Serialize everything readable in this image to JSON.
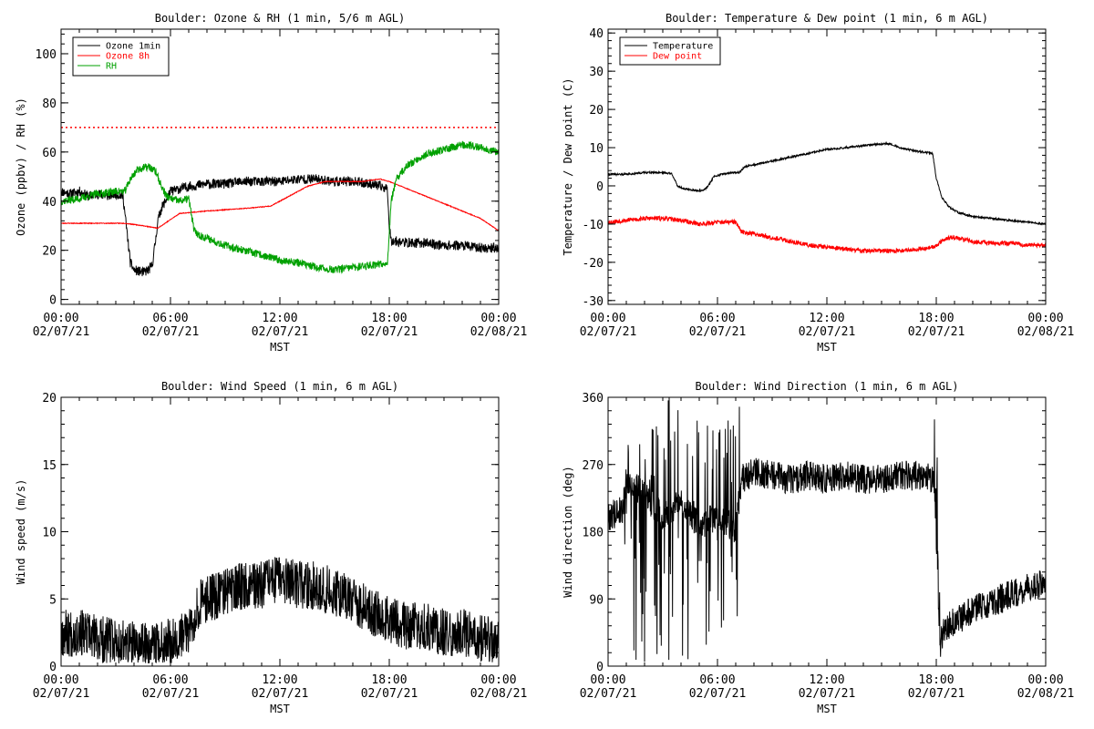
{
  "chart_data": [
    {
      "id": "ozone_rh",
      "type": "line",
      "title": "Boulder: Ozone & RH (1 min, 5/6 m AGL)",
      "xlabel": "MST",
      "ylabel": "Ozone (ppbv) / RH (%)",
      "xlim": [
        0,
        24
      ],
      "ylim": [
        -2,
        110
      ],
      "yticks": [
        0,
        20,
        40,
        60,
        80,
        100
      ],
      "xticks": [
        {
          "t": 0,
          "l1": "00:00",
          "l2": "02/07/21"
        },
        {
          "t": 6,
          "l1": "06:00",
          "l2": "02/07/21"
        },
        {
          "t": 12,
          "l1": "12:00",
          "l2": "02/07/21"
        },
        {
          "t": 18,
          "l1": "18:00",
          "l2": "02/07/21"
        },
        {
          "t": 24,
          "l1": "00:00",
          "l2": "02/08/21"
        }
      ],
      "reference_line": {
        "y": 70,
        "color": "#ff0000",
        "style": "dotted"
      },
      "legend": "top-left",
      "series": [
        {
          "name": "Ozone 1min",
          "color": "#000000",
          "noise": 2.0,
          "seed": 11,
          "x": [
            0,
            0.5,
            1,
            1.5,
            2,
            2.5,
            3,
            3.4,
            3.5,
            3.8,
            4,
            4.5,
            4.8,
            5.0,
            5.2,
            5.3,
            5.5,
            6,
            6.5,
            7,
            8,
            9,
            10,
            11,
            12,
            13,
            14,
            15,
            16,
            17,
            17.5,
            17.9,
            18,
            18.1,
            19,
            20,
            21,
            22,
            23,
            24
          ],
          "y": [
            44,
            43,
            44,
            42,
            43,
            42,
            43,
            42,
            35,
            15,
            12,
            11,
            12,
            14,
            25,
            32,
            37,
            44,
            45,
            46,
            47,
            47,
            48,
            48,
            48,
            49,
            49,
            48,
            48,
            47,
            46,
            45,
            30,
            24,
            23,
            23,
            22,
            22,
            21,
            21
          ]
        },
        {
          "name": "Ozone 8h",
          "color": "#ff0000",
          "noise": 0.15,
          "seed": 23,
          "x": [
            0,
            2.5,
            3.5,
            4.5,
            5.3,
            6.5,
            8,
            10,
            11.5,
            12.5,
            13.5,
            14.5,
            15.5,
            16.5,
            17.5,
            18,
            19,
            20,
            21,
            22,
            23,
            24
          ],
          "y": [
            31,
            31,
            31,
            30,
            29,
            35,
            36,
            37,
            38,
            42,
            46,
            48,
            48,
            48,
            49,
            48,
            45,
            42,
            39,
            36,
            33,
            28
          ]
        },
        {
          "name": "RH",
          "color": "#00a000",
          "noise": 1.6,
          "seed": 37,
          "x": [
            0,
            1,
            2,
            3,
            3.5,
            3.8,
            4.2,
            4.8,
            5.2,
            5.5,
            5.8,
            6.0,
            6.5,
            7,
            7.3,
            7.6,
            8,
            9,
            10,
            11,
            12,
            13,
            14,
            15,
            16,
            17,
            17.9,
            18.1,
            18.4,
            18.8,
            19.3,
            20,
            21,
            22,
            23,
            24
          ],
          "y": [
            40,
            41,
            43,
            44,
            44,
            49,
            53,
            54,
            52,
            46,
            42,
            41,
            40,
            41,
            28,
            26,
            25,
            22,
            20,
            18,
            16,
            15,
            13,
            12,
            13,
            14,
            15,
            40,
            49,
            53,
            56,
            59,
            61,
            63,
            62,
            60
          ]
        }
      ]
    },
    {
      "id": "temp_dew",
      "type": "line",
      "title": "Boulder: Temperature & Dew point (1 min, 6 m AGL)",
      "xlabel": "MST",
      "ylabel": "Temperature / Dew point (C)",
      "xlim": [
        0,
        24
      ],
      "ylim": [
        -31,
        41
      ],
      "yticks": [
        -30,
        -20,
        -10,
        0,
        10,
        20,
        30,
        40
      ],
      "xticks": [
        {
          "t": 0,
          "l1": "00:00",
          "l2": "02/07/21"
        },
        {
          "t": 6,
          "l1": "06:00",
          "l2": "02/07/21"
        },
        {
          "t": 12,
          "l1": "12:00",
          "l2": "02/07/21"
        },
        {
          "t": 18,
          "l1": "18:00",
          "l2": "02/07/21"
        },
        {
          "t": 24,
          "l1": "00:00",
          "l2": "02/08/21"
        }
      ],
      "legend": "top-left",
      "series": [
        {
          "name": "Temperature",
          "color": "#000000",
          "noise": 0.25,
          "seed": 41,
          "x": [
            0,
            1,
            2,
            3,
            3.5,
            3.8,
            4.2,
            4.8,
            5.2,
            5.5,
            5.8,
            6.2,
            6.8,
            7.2,
            7.5,
            8,
            9,
            10,
            11,
            12,
            13,
            14,
            15,
            15.5,
            16,
            17,
            17.8,
            18,
            18.3,
            18.7,
            19.2,
            20,
            21,
            22,
            23,
            24
          ],
          "y": [
            3,
            3,
            3.5,
            3.5,
            3.2,
            0,
            -0.8,
            -1.2,
            -1.3,
            0,
            2.5,
            3,
            3.5,
            3.5,
            5,
            5.5,
            6.5,
            7.5,
            8.5,
            9.5,
            10,
            10.5,
            11,
            11,
            10,
            9,
            8.5,
            2,
            -3,
            -5.5,
            -7,
            -8,
            -8.5,
            -9,
            -9.5,
            -10
          ]
        },
        {
          "name": "Dew point",
          "color": "#ff0000",
          "noise": 0.6,
          "seed": 53,
          "x": [
            0,
            1,
            2,
            3,
            4,
            5,
            6,
            7,
            7.3,
            8,
            9,
            10,
            11,
            12,
            13,
            14,
            15,
            16,
            17,
            17.9,
            18.4,
            18.8,
            19.5,
            20,
            21,
            22,
            23,
            24
          ],
          "y": [
            -9.5,
            -9,
            -8.5,
            -8.5,
            -9,
            -10,
            -9.5,
            -9.5,
            -12,
            -12.5,
            -13.5,
            -14.5,
            -15.5,
            -16,
            -16.5,
            -17,
            -17,
            -17,
            -16.5,
            -16,
            -14,
            -13.5,
            -14,
            -14.5,
            -15,
            -15,
            -15.5,
            -15.5
          ]
        }
      ]
    },
    {
      "id": "wind_speed",
      "type": "line",
      "title": "Boulder: Wind Speed (1 min, 6 m AGL)",
      "xlabel": "MST",
      "ylabel": "Wind speed (m/s)",
      "xlim": [
        0,
        24
      ],
      "ylim": [
        0,
        20
      ],
      "yticks": [
        0,
        5,
        10,
        15,
        20
      ],
      "xticks": [
        {
          "t": 0,
          "l1": "00:00",
          "l2": "02/07/21"
        },
        {
          "t": 6,
          "l1": "06:00",
          "l2": "02/07/21"
        },
        {
          "t": 12,
          "l1": "12:00",
          "l2": "02/07/21"
        },
        {
          "t": 18,
          "l1": "18:00",
          "l2": "02/07/21"
        },
        {
          "t": 24,
          "l1": "00:00",
          "l2": "02/08/21"
        }
      ],
      "series": [
        {
          "name": "",
          "color": "#000000",
          "noise": 1.8,
          "seed": 67,
          "floor": 0.2,
          "x": [
            0,
            1,
            2,
            3,
            4,
            5,
            6,
            7,
            7.5,
            8,
            9,
            10,
            11,
            12,
            13,
            14,
            15,
            16,
            17,
            18,
            19,
            20,
            21,
            22,
            23,
            24
          ],
          "y": [
            2.5,
            2.5,
            2.0,
            1.8,
            1.5,
            1.5,
            2.0,
            2.5,
            4.5,
            5.0,
            5.5,
            6.0,
            6.0,
            6.5,
            6.0,
            6.0,
            5.5,
            5.0,
            4.0,
            3.5,
            3.0,
            3.0,
            2.5,
            2.5,
            2.0,
            1.8
          ]
        }
      ]
    },
    {
      "id": "wind_dir",
      "type": "line",
      "title": "Boulder: Wind Direction (1 min, 6 m AGL)",
      "xlabel": "MST",
      "ylabel": "Wind direction (deg)",
      "xlim": [
        0,
        24
      ],
      "ylim": [
        0,
        360
      ],
      "yticks": [
        0,
        90,
        180,
        270,
        360
      ],
      "xticks": [
        {
          "t": 0,
          "l1": "00:00",
          "l2": "02/07/21"
        },
        {
          "t": 6,
          "l1": "06:00",
          "l2": "02/07/21"
        },
        {
          "t": 12,
          "l1": "12:00",
          "l2": "02/07/21"
        },
        {
          "t": 18,
          "l1": "18:00",
          "l2": "02/07/21"
        },
        {
          "t": 24,
          "l1": "00:00",
          "l2": "02/08/21"
        }
      ],
      "series": [
        {
          "name": "",
          "color": "#000000",
          "noise": 20,
          "seed": 79,
          "chaos": [
            [
              0.9,
              7.2
            ],
            [
              17.9,
              18.2
            ]
          ],
          "x": [
            0,
            0.8,
            1,
            2,
            3,
            4,
            5,
            6,
            7,
            7.3,
            8,
            9,
            10,
            11,
            12,
            13,
            14,
            15,
            16,
            17,
            17.9,
            18.2,
            18.5,
            19,
            20,
            21,
            22,
            23,
            24
          ],
          "y": [
            200,
            210,
            250,
            230,
            200,
            220,
            190,
            200,
            180,
            250,
            260,
            255,
            250,
            255,
            250,
            255,
            250,
            250,
            255,
            255,
            250,
            30,
            50,
            60,
            75,
            85,
            95,
            105,
            110
          ]
        }
      ]
    }
  ]
}
